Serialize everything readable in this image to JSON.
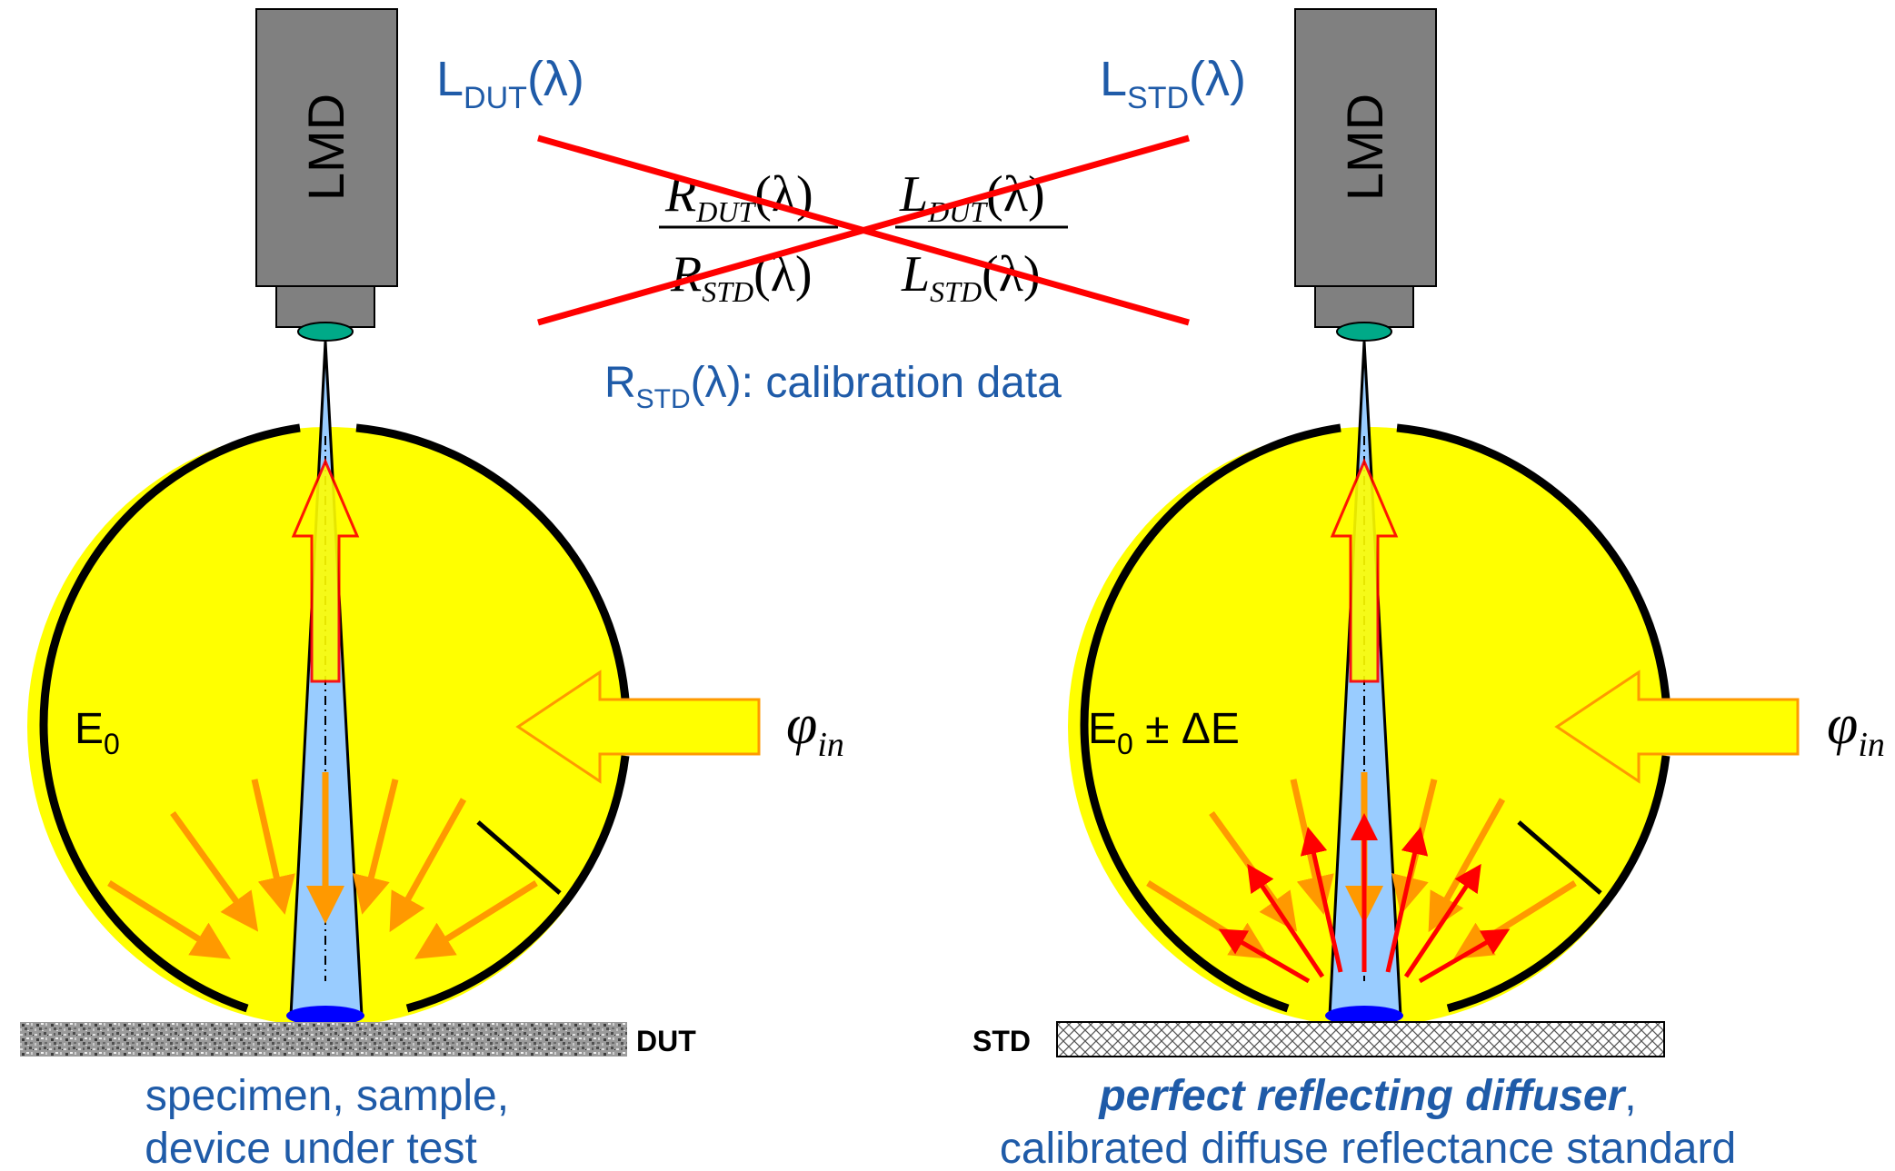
{
  "instrument": {
    "label": "LMD"
  },
  "left_setup": {
    "radiance_symbol": "L",
    "radiance_subscript": "DUT",
    "radiance_arg": "(λ)",
    "irradiance_label": "E",
    "irradiance_subscript": "0",
    "flux_label": "φ",
    "flux_subscript": "in",
    "sample_tag": "DUT",
    "caption_line1": "specimen, sample,",
    "caption_line2": "device under test"
  },
  "right_setup": {
    "radiance_symbol": "L",
    "radiance_subscript": "STD",
    "radiance_arg": "(λ)",
    "irradiance_label": "E",
    "irradiance_subscript": "0",
    "irradiance_suffix": " ± ΔE",
    "flux_label": "φ",
    "flux_subscript": "in",
    "sample_tag": "STD",
    "caption_emph": "perfect reflecting diffuser",
    "caption_comma": ",",
    "caption_line2": "calibrated diffuse reflectance standard"
  },
  "equation": {
    "r_symbol": "R",
    "l_symbol": "L",
    "dut_sub": "DUT",
    "std_sub": "STD",
    "arg": "(λ)"
  },
  "calibration": {
    "symbol": "R",
    "subscript": "STD",
    "text": "(λ): calibration data"
  },
  "colors": {
    "sphere": "#ffff00",
    "beam": "#99ccff",
    "arrow_orange": "#ff9900",
    "arrow_red": "#ff0000",
    "text_blue": "#1f5ba8",
    "instrument": "#808080",
    "lens": "#00aa88",
    "spot": "#0000ff"
  }
}
